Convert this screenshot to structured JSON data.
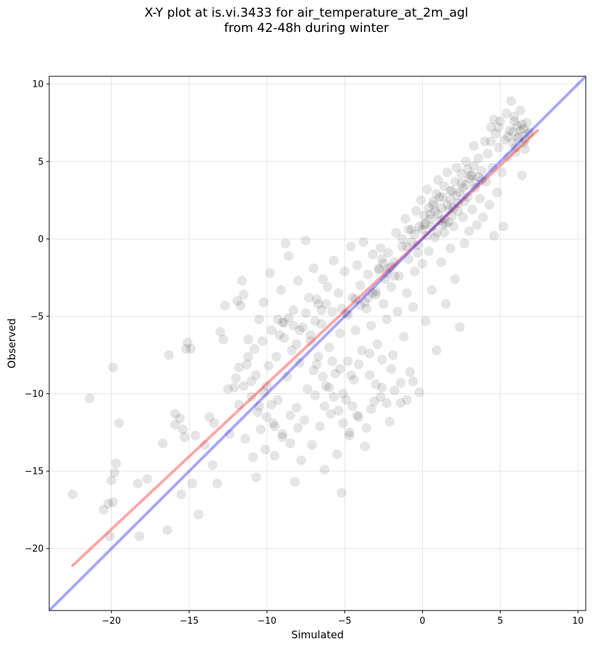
{
  "chart_data": {
    "type": "scatter",
    "title_line1": "X-Y plot at is.vi.3433 for air_temperature_at_2m_agl",
    "title_line2": "from 42-48h during winter",
    "xlabel": "Simulated",
    "ylabel": "Observed",
    "xlim": [
      -24,
      10.5
    ],
    "ylim": [
      -24,
      10.5
    ],
    "xticks": [
      -20,
      -15,
      -10,
      -5,
      0,
      5,
      10
    ],
    "yticks": [
      -20,
      -15,
      -10,
      -5,
      0,
      5,
      10
    ],
    "xtick_labels": [
      "−20",
      "−15",
      "−10",
      "−5",
      "0",
      "5",
      "10"
    ],
    "ytick_labels": [
      "−20",
      "−15",
      "−10",
      "−5",
      "0",
      "5",
      "10"
    ],
    "grid": true,
    "point_color": "#000000",
    "point_opacity": 0.1,
    "points": [
      [
        -22.5,
        -16.5
      ],
      [
        -21.4,
        -10.3
      ],
      [
        -20.1,
        -19.2
      ],
      [
        -20.0,
        -15.6
      ],
      [
        -19.8,
        -15.1
      ],
      [
        -19.7,
        -14.5
      ],
      [
        -19.5,
        -11.9
      ],
      [
        -19.9,
        -8.3
      ],
      [
        -20.5,
        -17.5
      ],
      [
        -20.2,
        -17.1
      ],
      [
        -19.9,
        -17.0
      ],
      [
        -18.3,
        -15.8
      ],
      [
        -18.2,
        -19.2
      ],
      [
        -17.7,
        -15.5
      ],
      [
        -16.7,
        -13.2
      ],
      [
        -16.4,
        -18.8
      ],
      [
        -16.3,
        -7.5
      ],
      [
        -15.9,
        -12.0
      ],
      [
        -15.9,
        -11.3
      ],
      [
        -15.6,
        -11.6
      ],
      [
        -15.5,
        -16.5
      ],
      [
        -15.4,
        -12.3
      ],
      [
        -15.3,
        -12.8
      ],
      [
        -15.2,
        -7.1
      ],
      [
        -15.1,
        -6.7
      ],
      [
        -14.9,
        -7.1
      ],
      [
        -14.8,
        -15.8
      ],
      [
        -14.6,
        -12.7
      ],
      [
        -14.4,
        -17.8
      ],
      [
        -14.0,
        -13.3
      ],
      [
        -13.7,
        -11.5
      ],
      [
        -13.5,
        -14.6
      ],
      [
        -13.4,
        -11.9
      ],
      [
        -13.2,
        -15.8
      ],
      [
        -13.0,
        -6.0
      ],
      [
        -12.8,
        -6.5
      ],
      [
        -12.7,
        -4.3
      ],
      [
        -12.4,
        -12.6
      ],
      [
        -12.1,
        -9.6
      ],
      [
        -11.9,
        -4.0
      ],
      [
        -11.8,
        -10.7
      ],
      [
        -11.7,
        -4.3
      ],
      [
        -11.6,
        -2.7
      ],
      [
        -11.5,
        -3.6
      ],
      [
        -11.4,
        -12.9
      ],
      [
        -11.3,
        -8.1
      ],
      [
        -11.2,
        -6.5
      ],
      [
        -11.0,
        -9.2
      ],
      [
        -10.9,
        -14.1
      ],
      [
        -10.8,
        -7.1
      ],
      [
        -10.7,
        -15.4
      ],
      [
        -10.6,
        -11.2
      ],
      [
        -10.5,
        -5.2
      ],
      [
        -10.4,
        -12.3
      ],
      [
        -10.3,
        -6.6
      ],
      [
        -10.2,
        -4.1
      ],
      [
        -10.1,
        -13.6
      ],
      [
        -10.0,
        -9.5
      ],
      [
        -9.9,
        -8.2
      ],
      [
        -9.8,
        -2.2
      ],
      [
        -9.7,
        -5.9
      ],
      [
        -9.6,
        -11.9
      ],
      [
        -9.5,
        -14.0
      ],
      [
        -9.4,
        -7.6
      ],
      [
        -9.3,
        -10.4
      ],
      [
        -9.2,
        -6.2
      ],
      [
        -9.1,
        -3.3
      ],
      [
        -9.0,
        -12.6
      ],
      [
        -8.9,
        -5.4
      ],
      [
        -8.8,
        -0.3
      ],
      [
        -8.7,
        -8.9
      ],
      [
        -8.6,
        -1.1
      ],
      [
        -8.5,
        -13.2
      ],
      [
        -8.4,
        -7.2
      ],
      [
        -8.3,
        -4.6
      ],
      [
        -8.2,
        -15.7
      ],
      [
        -8.1,
        -10.9
      ],
      [
        -8.0,
        -2.7
      ],
      [
        -7.9,
        -8.0
      ],
      [
        -7.8,
        -14.3
      ],
      [
        -7.7,
        -5.7
      ],
      [
        -7.6,
        -11.7
      ],
      [
        -7.5,
        -0.1
      ],
      [
        -7.4,
        -9.7
      ],
      [
        -7.3,
        -3.8
      ],
      [
        -7.2,
        -6.6
      ],
      [
        -7.1,
        -13.3
      ],
      [
        -7.0,
        -1.9
      ],
      [
        -6.9,
        -10.1
      ],
      [
        -6.8,
        -8.1
      ],
      [
        -6.7,
        -4.2
      ],
      [
        -6.6,
        -12.1
      ],
      [
        -6.5,
        -5.5
      ],
      [
        -6.4,
        -2.6
      ],
      [
        -6.3,
        -14.9
      ],
      [
        -6.2,
        -9.5
      ],
      [
        -6.1,
        -3.1
      ],
      [
        -6.0,
        -7.0
      ],
      [
        -5.9,
        -11.3
      ],
      [
        -5.8,
        -4.7
      ],
      [
        -5.7,
        -1.4
      ],
      [
        -5.6,
        -8.7
      ],
      [
        -5.5,
        -13.9
      ],
      [
        -5.4,
        -3.5
      ],
      [
        -5.3,
        -6.1
      ],
      [
        -5.2,
        -16.4
      ],
      [
        -5.1,
        -10.0
      ],
      [
        -5.0,
        -2.1
      ],
      [
        -4.9,
        -4.8
      ],
      [
        -4.8,
        -7.9
      ],
      [
        -4.7,
        -12.5
      ],
      [
        -4.6,
        -0.5
      ],
      [
        -4.5,
        -3.8
      ],
      [
        -4.4,
        -9.1
      ],
      [
        -4.3,
        -5.9
      ],
      [
        -4.2,
        -1.7
      ],
      [
        -4.1,
        -11.5
      ],
      [
        -4.0,
        -3.0
      ],
      [
        -3.9,
        -7.2
      ],
      [
        -3.8,
        -0.2
      ],
      [
        -3.7,
        -13.4
      ],
      [
        -3.6,
        -4.5
      ],
      [
        -3.5,
        -2.3
      ],
      [
        -3.4,
        -8.8
      ],
      [
        -3.3,
        -5.6
      ],
      [
        -3.2,
        -1.0
      ],
      [
        -3.1,
        -10.5
      ],
      [
        -3.0,
        -3.4
      ],
      [
        -2.9,
        -6.8
      ],
      [
        -2.8,
        -1.9
      ],
      [
        -2.7,
        -0.6
      ],
      [
        -2.6,
        -9.6
      ],
      [
        -2.5,
        -4.2
      ],
      [
        -2.4,
        -2.6
      ],
      [
        -2.3,
        -5.2
      ],
      [
        -2.2,
        -0.9
      ],
      [
        -2.1,
        -11.8
      ],
      [
        -2.0,
        -3.1
      ],
      [
        -1.9,
        -7.5
      ],
      [
        -1.8,
        -1.5
      ],
      [
        -1.7,
        0.4
      ],
      [
        -1.6,
        -4.7
      ],
      [
        -1.5,
        -2.4
      ],
      [
        -1.4,
        -10.6
      ],
      [
        -1.3,
        -0.5
      ],
      [
        -1.2,
        -6.3
      ],
      [
        -1.1,
        1.3
      ],
      [
        -1.0,
        -3.5
      ],
      [
        -0.9,
        -1.3
      ],
      [
        -0.8,
        -8.6
      ],
      [
        -0.7,
        0.6
      ],
      [
        -0.6,
        -4.4
      ],
      [
        -0.5,
        -2.1
      ],
      [
        -0.4,
        1.8
      ],
      [
        -0.3,
        -0.4
      ],
      [
        -0.2,
        -9.9
      ],
      [
        -0.1,
        2.5
      ],
      [
        0.0,
        -1.6
      ],
      [
        0.1,
        0.9
      ],
      [
        0.2,
        -5.3
      ],
      [
        0.3,
        3.2
      ],
      [
        0.4,
        -0.8
      ],
      [
        0.5,
        1.6
      ],
      [
        0.6,
        -3.3
      ],
      [
        0.7,
        2.2
      ],
      [
        0.8,
        0.1
      ],
      [
        0.9,
        -7.2
      ],
      [
        1.0,
        3.8
      ],
      [
        1.1,
        1.2
      ],
      [
        1.2,
        -1.5
      ],
      [
        1.3,
        2.7
      ],
      [
        1.4,
        0.4
      ],
      [
        1.5,
        -4.2
      ],
      [
        1.6,
        4.3
      ],
      [
        1.7,
        1.9
      ],
      [
        1.8,
        -0.6
      ],
      [
        1.9,
        3.1
      ],
      [
        2.0,
        0.8
      ],
      [
        2.1,
        -2.6
      ],
      [
        2.2,
        4.6
      ],
      [
        2.3,
        2.3
      ],
      [
        2.4,
        -5.7
      ],
      [
        2.5,
        3.6
      ],
      [
        2.6,
        1.4
      ],
      [
        2.7,
        -0.3
      ],
      [
        2.8,
        5.0
      ],
      [
        2.9,
        2.7
      ],
      [
        3.0,
        0.5
      ],
      [
        3.1,
        4.1
      ],
      [
        3.2,
        1.9
      ],
      [
        3.3,
        6.0
      ],
      [
        3.4,
        3.3
      ],
      [
        3.5,
        0.9
      ],
      [
        3.6,
        5.2
      ],
      [
        3.7,
        2.6
      ],
      [
        3.8,
        4.4
      ],
      [
        3.9,
        1.4
      ],
      [
        4.0,
        6.3
      ],
      [
        4.1,
        3.7
      ],
      [
        4.2,
        5.5
      ],
      [
        4.3,
        2.2
      ],
      [
        4.4,
        7.2
      ],
      [
        4.5,
        4.6
      ],
      [
        4.6,
        0.2
      ],
      [
        4.7,
        6.8
      ],
      [
        4.8,
        3.0
      ],
      [
        4.9,
        5.9
      ],
      [
        5.0,
        7.6
      ],
      [
        5.1,
        4.3
      ],
      [
        5.2,
        0.8
      ],
      [
        5.3,
        6.4
      ],
      [
        5.4,
        8.1
      ],
      [
        5.5,
        5.3
      ],
      [
        5.6,
        7.0
      ],
      [
        5.7,
        8.9
      ],
      [
        5.8,
        6.2
      ],
      [
        5.9,
        7.9
      ],
      [
        6.0,
        5.6
      ],
      [
        6.1,
        7.3
      ],
      [
        6.2,
        6.6
      ],
      [
        6.3,
        8.3
      ],
      [
        6.4,
        4.1
      ],
      [
        6.5,
        7.1
      ],
      [
        6.6,
        5.8
      ],
      [
        6.7,
        7.5
      ],
      [
        6.8,
        6.8
      ],
      [
        6.9,
        6.9
      ],
      [
        -3.5,
        -3.8
      ],
      [
        -3.2,
        -3.5
      ],
      [
        -2.8,
        -2.0
      ],
      [
        -2.5,
        -1.6
      ],
      [
        -2.3,
        -2.2
      ],
      [
        -2.0,
        -1.8
      ],
      [
        -1.8,
        -2.4
      ],
      [
        -4.0,
        -4.3
      ],
      [
        -4.3,
        -3.9
      ],
      [
        -3.7,
        -4.1
      ],
      [
        -3.0,
        -3.6
      ],
      [
        -2.6,
        -1.3
      ],
      [
        -2.2,
        -1.9
      ],
      [
        -5.2,
        -4.5
      ],
      [
        -4.8,
        -4.9
      ],
      [
        -6.5,
        -4.6
      ],
      [
        -6.2,
        -4.2
      ],
      [
        -6.8,
        -3.9
      ],
      [
        0.2,
        1.0
      ],
      [
        0.5,
        1.3
      ],
      [
        0.8,
        1.8
      ],
      [
        1.0,
        1.6
      ],
      [
        1.2,
        2.0
      ],
      [
        1.4,
        1.3
      ],
      [
        1.6,
        2.2
      ],
      [
        1.8,
        2.5
      ],
      [
        2.0,
        2.0
      ],
      [
        2.2,
        2.8
      ],
      [
        2.4,
        3.0
      ],
      [
        2.6,
        3.3
      ],
      [
        2.8,
        3.5
      ],
      [
        3.0,
        3.9
      ],
      [
        3.2,
        4.1
      ],
      [
        3.4,
        3.6
      ],
      [
        3.6,
        4.0
      ],
      [
        3.8,
        3.8
      ],
      [
        0.7,
        2.4
      ],
      [
        1.1,
        2.7
      ],
      [
        1.5,
        1.0
      ],
      [
        1.9,
        1.5
      ],
      [
        2.3,
        1.8
      ],
      [
        2.7,
        2.4
      ],
      [
        0.0,
        0.6
      ],
      [
        0.3,
        0.2
      ],
      [
        0.6,
        0.8
      ],
      [
        0.9,
        0.4
      ],
      [
        1.3,
        0.9
      ],
      [
        1.7,
        1.1
      ],
      [
        -0.5,
        0.3
      ],
      [
        -0.2,
        0.8
      ],
      [
        0.1,
        1.5
      ],
      [
        0.4,
        2.0
      ],
      [
        0.9,
        2.9
      ],
      [
        1.4,
        3.4
      ],
      [
        1.8,
        3.1
      ],
      [
        2.1,
        3.7
      ],
      [
        2.5,
        4.2
      ],
      [
        2.9,
        4.5
      ],
      [
        3.3,
        4.7
      ],
      [
        -1.0,
        -0.5
      ],
      [
        -0.7,
        -0.2
      ],
      [
        -0.3,
        -0.9
      ],
      [
        -1.3,
        0.0
      ],
      [
        -0.9,
        0.6
      ],
      [
        5.8,
        6.9
      ],
      [
        6.1,
        6.5
      ],
      [
        6.3,
        7.0
      ],
      [
        6.5,
        6.2
      ],
      [
        5.5,
        6.6
      ],
      [
        6.0,
        5.9
      ],
      [
        6.4,
        7.4
      ],
      [
        5.9,
        7.6
      ],
      [
        6.6,
        6.4
      ],
      [
        4.6,
        7.7
      ],
      [
        4.9,
        7.2
      ],
      [
        4.4,
        6.3
      ],
      [
        -9.3,
        -5.2
      ],
      [
        -9.0,
        -5.4
      ],
      [
        -8.6,
        -5.1
      ],
      [
        -8.3,
        -5.6
      ],
      [
        -7.5,
        -4.8
      ],
      [
        -7.9,
        -5.9
      ],
      [
        -6.9,
        -5.3
      ],
      [
        -8.9,
        -6.4
      ],
      [
        -8.1,
        -6.8
      ],
      [
        -7.2,
        -6.2
      ],
      [
        -6.7,
        -7.6
      ],
      [
        -7.0,
        -8.5
      ],
      [
        -6.4,
        -8.9
      ],
      [
        -6.0,
        -9.6
      ],
      [
        -5.7,
        -10.2
      ],
      [
        -6.3,
        -10.8
      ],
      [
        -5.4,
        -11.1
      ],
      [
        -4.9,
        -10.4
      ],
      [
        -4.5,
        -10.8
      ],
      [
        -4.2,
        -11.4
      ],
      [
        -5.1,
        -11.9
      ],
      [
        -4.7,
        -12.7
      ],
      [
        -3.6,
        -12.2
      ],
      [
        -3.3,
        -11.0
      ],
      [
        -3.0,
        -9.4
      ],
      [
        -2.7,
        -10.2
      ],
      [
        -2.3,
        -10.6
      ],
      [
        -1.8,
        -9.8
      ],
      [
        -1.4,
        -9.3
      ],
      [
        -1.0,
        -10.4
      ],
      [
        -0.6,
        -9.2
      ],
      [
        -2.0,
        -8.4
      ],
      [
        -2.6,
        -7.8
      ],
      [
        -3.4,
        -7.4
      ],
      [
        -4.1,
        -8.1
      ],
      [
        -4.6,
        -8.8
      ],
      [
        -5.3,
        -8.4
      ],
      [
        -5.8,
        -7.9
      ],
      [
        -12.0,
        -9.0
      ],
      [
        -11.5,
        -9.5
      ],
      [
        -11.0,
        -10.2
      ],
      [
        -10.5,
        -10.8
      ],
      [
        -10.0,
        -11.5
      ],
      [
        -9.5,
        -12.1
      ],
      [
        -9.0,
        -12.8
      ],
      [
        -8.5,
        -11.4
      ],
      [
        -8.0,
        -12.2
      ],
      [
        -12.5,
        -9.7
      ],
      [
        -11.8,
        -8.3
      ],
      [
        -11.2,
        -7.6
      ],
      [
        -10.7,
        -8.8
      ],
      [
        -10.2,
        -9.9
      ],
      [
        -9.7,
        -10.7
      ]
    ],
    "lines": [
      {
        "color": "#ff0000",
        "opacity": 0.35,
        "x": [
          -22.5,
          7.4
        ],
        "y": [
          -21.1,
          7.0
        ]
      },
      {
        "color": "#0000ff",
        "opacity": 0.35,
        "x": [
          -24,
          10.5
        ],
        "y": [
          -24,
          10.5
        ]
      }
    ]
  }
}
